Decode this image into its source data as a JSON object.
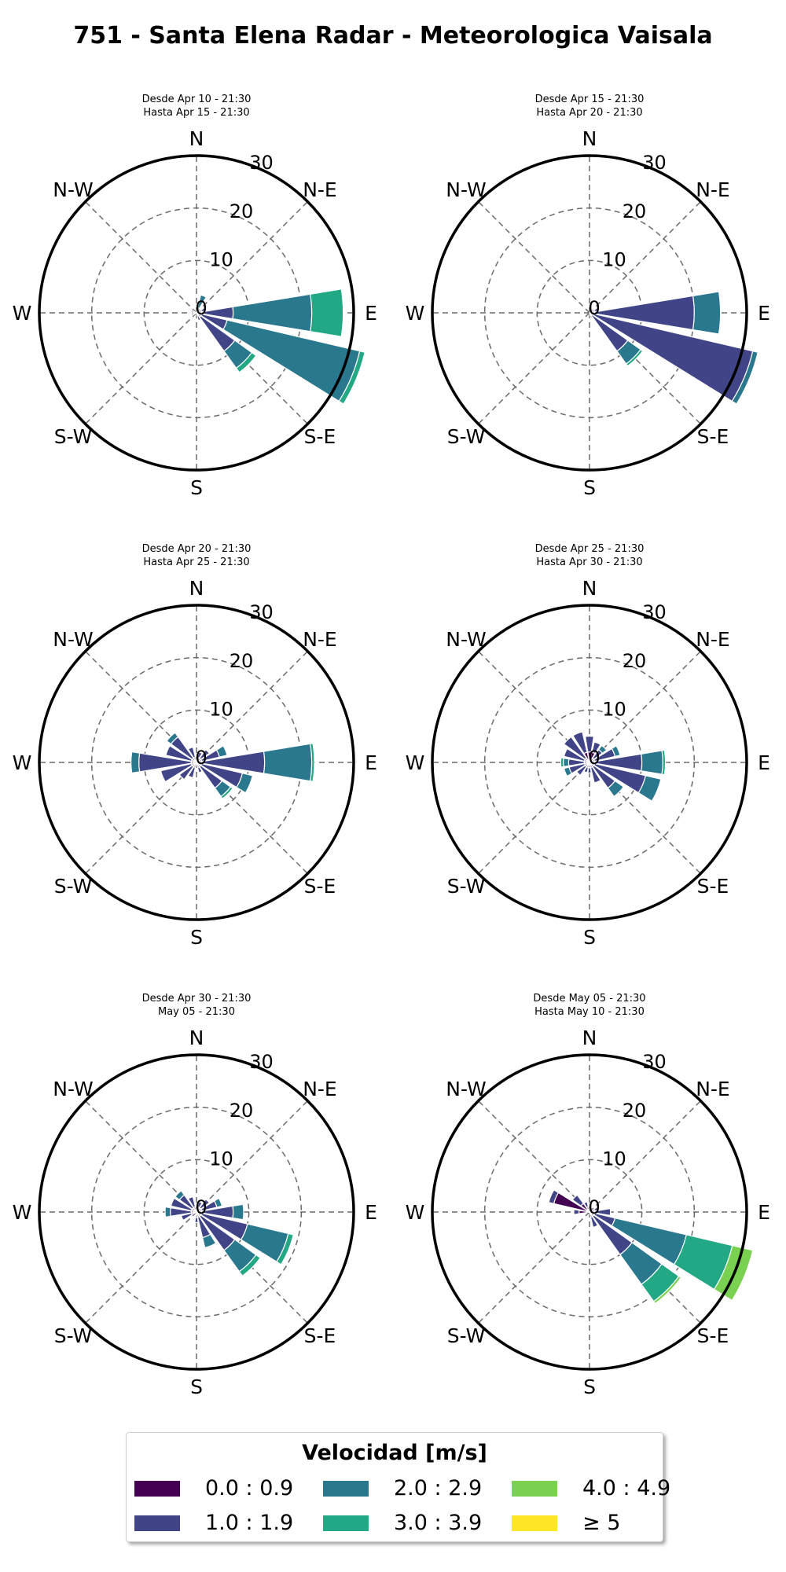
{
  "title": "751 - Santa Elena Radar - Meteorologica Vaisala",
  "legend": {
    "title": "Velocidad [m/s]",
    "bins": [
      {
        "label": "0.0 : 0.9",
        "color": "#440154"
      },
      {
        "label": "1.0 : 1.9",
        "color": "#414487"
      },
      {
        "label": "2.0 : 2.9",
        "color": "#2a788e"
      },
      {
        "label": "3.0 : 3.9",
        "color": "#22a884"
      },
      {
        "label": "4.0 : 4.9",
        "color": "#7ad151"
      },
      {
        "label": "≥ 5",
        "color": "#fde725"
      }
    ]
  },
  "axis": {
    "directions": [
      "N",
      "N-E",
      "E",
      "S-E",
      "S",
      "S-W",
      "W",
      "N-W"
    ],
    "rticks": [
      0,
      10,
      20,
      30
    ],
    "rmax": 30
  },
  "chart_data": [
    {
      "type": "windrose",
      "subtitle_from": "Desde Apr 10 - 21:30",
      "subtitle_to": "Hasta Apr 15 - 21:30",
      "petals": [
        {
          "dir": 22.5,
          "bins": [
            0,
            1,
            3.5
          ]
        },
        {
          "dir": 45,
          "bins": [
            1
          ]
        },
        {
          "dir": 67.5,
          "bins": [
            1,
            2
          ]
        },
        {
          "dir": 90,
          "bins": [
            1,
            7,
            22,
            28
          ]
        },
        {
          "dir": 112.5,
          "bins": [
            1,
            6,
            32,
            33
          ]
        },
        {
          "dir": 135,
          "bins": [
            1,
            9,
            13,
            14
          ]
        },
        {
          "dir": 157.5,
          "bins": [
            0.5,
            1.5
          ]
        },
        {
          "dir": 247.5,
          "bins": [
            1
          ]
        },
        {
          "dir": 270,
          "bins": [
            1
          ]
        },
        {
          "dir": 292.5,
          "bins": [
            1
          ]
        }
      ]
    },
    {
      "type": "windrose",
      "subtitle_from": "Desde Apr 15 - 21:30",
      "subtitle_to": "Hasta Apr 20 - 21:30",
      "petals": [
        {
          "dir": 45,
          "bins": [
            1
          ]
        },
        {
          "dir": 67.5,
          "bins": [
            1,
            2
          ]
        },
        {
          "dir": 90,
          "bins": [
            1,
            20,
            25
          ]
        },
        {
          "dir": 112.5,
          "bins": [
            0.5,
            32,
            33
          ]
        },
        {
          "dir": 135,
          "bins": [
            0.5,
            9,
            12,
            12.5
          ]
        },
        {
          "dir": 157.5,
          "bins": [
            1
          ]
        }
      ]
    },
    {
      "type": "windrose",
      "subtitle_from": "Desde Apr 20 - 21:30",
      "subtitle_to": "Hasta Apr 25 - 21:30",
      "petals": [
        {
          "dir": 22.5,
          "bins": [
            1,
            2
          ]
        },
        {
          "dir": 45,
          "bins": [
            1,
            3
          ]
        },
        {
          "dir": 67.5,
          "bins": [
            1,
            4.5,
            6
          ]
        },
        {
          "dir": 90,
          "bins": [
            1,
            13,
            22,
            22.5
          ]
        },
        {
          "dir": 112.5,
          "bins": [
            1,
            9,
            11
          ]
        },
        {
          "dir": 135,
          "bins": [
            1,
            6,
            8,
            8.5
          ]
        },
        {
          "dir": 157.5,
          "bins": [
            1,
            2
          ]
        },
        {
          "dir": 202.5,
          "bins": [
            1,
            3
          ]
        },
        {
          "dir": 225,
          "bins": [
            1,
            4
          ]
        },
        {
          "dir": 247.5,
          "bins": [
            1,
            7
          ]
        },
        {
          "dir": 270,
          "bins": [
            1,
            11,
            12.5
          ]
        },
        {
          "dir": 292.5,
          "bins": [
            1,
            6
          ]
        },
        {
          "dir": 315,
          "bins": [
            1,
            6,
            7
          ]
        },
        {
          "dir": 337.5,
          "bins": [
            1,
            3
          ]
        }
      ]
    },
    {
      "type": "windrose",
      "subtitle_from": "Desde Apr 25 - 21:30",
      "subtitle_to": "Hasta Apr 30 - 21:30",
      "petals": [
        {
          "dir": 0,
          "bins": [
            2,
            5
          ]
        },
        {
          "dir": 22.5,
          "bins": [
            2,
            4
          ]
        },
        {
          "dir": 45,
          "bins": [
            1,
            3,
            4
          ]
        },
        {
          "dir": 67.5,
          "bins": [
            1,
            5,
            6
          ]
        },
        {
          "dir": 90,
          "bins": [
            1,
            10,
            14,
            14.5
          ]
        },
        {
          "dir": 112.5,
          "bins": [
            1,
            11,
            14
          ]
        },
        {
          "dir": 135,
          "bins": [
            1,
            6,
            8
          ]
        },
        {
          "dir": 157.5,
          "bins": [
            1,
            4
          ]
        },
        {
          "dir": 180,
          "bins": [
            1,
            2
          ]
        },
        {
          "dir": 202.5,
          "bins": [
            1,
            2
          ]
        },
        {
          "dir": 225,
          "bins": [
            1,
            3
          ]
        },
        {
          "dir": 247.5,
          "bins": [
            1,
            4,
            5
          ]
        },
        {
          "dir": 270,
          "bins": [
            1,
            4,
            5,
            5.5
          ]
        },
        {
          "dir": 292.5,
          "bins": [
            1,
            5
          ]
        },
        {
          "dir": 315,
          "bins": [
            1,
            6
          ]
        },
        {
          "dir": 337.5,
          "bins": [
            2,
            6
          ]
        }
      ]
    },
    {
      "type": "windrose",
      "subtitle_from": "Desde Apr 30 - 21:30",
      "subtitle_to": "May 05 - 21:30",
      "petals": [
        {
          "dir": 22.5,
          "bins": [
            1,
            2
          ]
        },
        {
          "dir": 45,
          "bins": [
            1,
            3
          ]
        },
        {
          "dir": 67.5,
          "bins": [
            1,
            4,
            5
          ]
        },
        {
          "dir": 90,
          "bins": [
            1,
            7,
            9
          ]
        },
        {
          "dir": 112.5,
          "bins": [
            1,
            10,
            18,
            19
          ]
        },
        {
          "dir": 135,
          "bins": [
            1,
            9,
            14,
            15
          ]
        },
        {
          "dir": 157.5,
          "bins": [
            1,
            5,
            7
          ]
        },
        {
          "dir": 180,
          "bins": [
            1,
            2
          ]
        },
        {
          "dir": 247.5,
          "bins": [
            1,
            3
          ]
        },
        {
          "dir": 270,
          "bins": [
            1,
            5,
            6
          ]
        },
        {
          "dir": 292.5,
          "bins": [
            1,
            5
          ]
        },
        {
          "dir": 315,
          "bins": [
            1,
            4,
            5
          ]
        },
        {
          "dir": 337.5,
          "bins": [
            1,
            3
          ]
        }
      ]
    },
    {
      "type": "windrose",
      "subtitle_from": "Desde May 05 - 21:30",
      "subtitle_to": "Hasta May 10 - 21:30",
      "petals": [
        {
          "dir": 67.5,
          "bins": [
            1,
            2
          ]
        },
        {
          "dir": 90,
          "bins": [
            1,
            4
          ]
        },
        {
          "dir": 112.5,
          "bins": [
            1,
            5,
            19,
            28,
            32
          ]
        },
        {
          "dir": 135,
          "bins": [
            1,
            10,
            17,
            21,
            21.5
          ]
        },
        {
          "dir": 157.5,
          "bins": [
            1,
            3
          ]
        },
        {
          "dir": 270,
          "bins": [
            2,
            3
          ]
        },
        {
          "dir": 292.5,
          "bins": [
            7,
            8
          ]
        },
        {
          "dir": 315,
          "bins": [
            2,
            4
          ]
        },
        {
          "dir": 337.5,
          "bins": [
            1,
            2
          ]
        }
      ]
    }
  ]
}
